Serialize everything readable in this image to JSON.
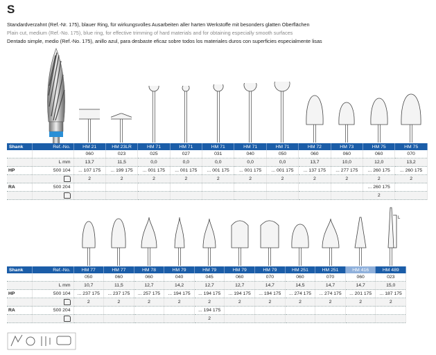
{
  "header": {
    "letter": "S",
    "desc_de": "Standardverzahnt (Ref.-Nr. 175), blauer Ring, für wirkungsvolles Ausarbeiten aller harten Werkstoffe mit besonders glatten Oberflächen",
    "desc_en": "Plain cut, medium (Ref.-No. 175), blue ring, for effective trimming of hard materials and for obtaining especially smooth surfaces",
    "desc_es": "Dentado simple, medio (Ref.-No. 175), anillo azul, para desbaste eficaz sobre todos los materiales duros con superficies especialmente lisas"
  },
  "table1": {
    "shank_label": "Shank",
    "ref_label": "Ref.-No.",
    "models": [
      "HM 21",
      "HM 23LR",
      "HM 71",
      "HM 71",
      "HM 71",
      "HM 71",
      "HM 71",
      "HM 72",
      "HM 73",
      "HM 75",
      "HM 75"
    ],
    "sizes": [
      "060",
      "023",
      "025",
      "027",
      "031",
      "040",
      "050",
      "060",
      "060",
      "060",
      "070"
    ],
    "l_label": "L mm",
    "lengths": [
      "13,7",
      "11,5",
      "0,0",
      "0,0",
      "0,0",
      "0,0",
      "0,0",
      "13,7",
      "10,0",
      "12,0",
      "13,2"
    ],
    "hp_label": "HP",
    "hp_ref": "500 104",
    "hp_codes": [
      "... 107 175",
      "... 199 175",
      "... 001 175",
      "... 001 175",
      "... 001 175",
      "... 001 175",
      "... 001 175",
      "... 137 175",
      "... 277 175",
      "... 260 175",
      "... 260 175"
    ],
    "hp_qty": [
      "2",
      "2",
      "2",
      "2",
      "2",
      "2",
      "2",
      "2",
      "2",
      "2",
      "2"
    ],
    "ra_label": "RA",
    "ra_ref": "500 204",
    "ra_codes": [
      "",
      "",
      "",
      "",
      "",
      "",
      "",
      "",
      "",
      "... 260 175",
      ""
    ],
    "ra_qty": [
      "",
      "",
      "",
      "",
      "",
      "",
      "",
      "",
      "",
      "2",
      ""
    ]
  },
  "table2": {
    "shank_label": "Shank",
    "ref_label": "Ref.-No.",
    "models": [
      "HM 77",
      "HM 77",
      "HM 78",
      "HM 79",
      "HM 79",
      "HM 79",
      "HM 79",
      "HM 251",
      "HM 251",
      "HM 416",
      "HM 489"
    ],
    "sizes": [
      "050",
      "060",
      "060",
      "040",
      "045",
      "060",
      "070",
      "060",
      "070",
      "060",
      "023"
    ],
    "l_label": "L mm",
    "lengths": [
      "10,7",
      "11,5",
      "12,7",
      "14,2",
      "12,7",
      "12,7",
      "14,7",
      "14,5",
      "14,7",
      "14,7",
      "15,0"
    ],
    "hp_label": "HP",
    "hp_ref": "500 104",
    "hp_codes": [
      "... 237 175",
      "... 237 175",
      "... 257 175",
      "... 194 175",
      "... 194 175",
      "... 194 175",
      "... 194 175",
      "... 274 175",
      "... 274 175",
      "... 201 175",
      "... 187 175"
    ],
    "hp_qty": [
      "2",
      "2",
      "2",
      "2",
      "2",
      "2",
      "2",
      "2",
      "2",
      "2",
      "2"
    ],
    "ra_label": "RA",
    "ra_ref": "500 204",
    "ra_codes": [
      "",
      "",
      "",
      "",
      "... 194 175",
      "",
      "",
      "",
      "",
      "",
      ""
    ],
    "ra_qty": [
      "",
      "",
      "",
      "",
      "2",
      "",
      "",
      "",
      "",
      "",
      ""
    ]
  },
  "l_marker": "L",
  "colors": {
    "header_blue": "#1b5da8",
    "highlight": "#8fb0db",
    "ring_blue": "#2a8fd6"
  }
}
